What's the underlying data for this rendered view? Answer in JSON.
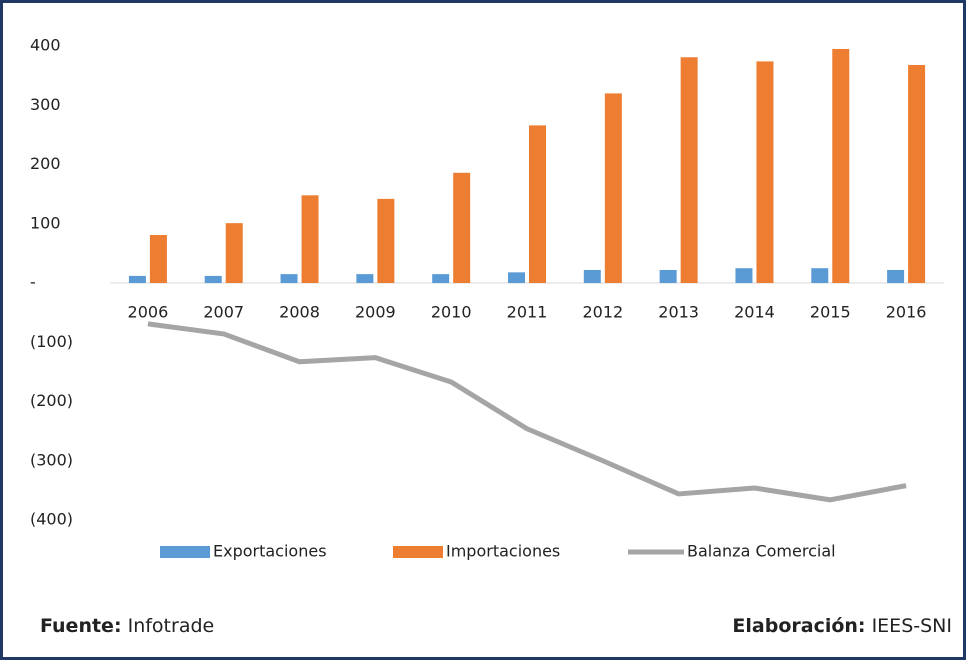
{
  "chart_data": {
    "type": "bar",
    "categories": [
      "2006",
      "2007",
      "2008",
      "2009",
      "2010",
      "2011",
      "2012",
      "2013",
      "2014",
      "2015",
      "2016"
    ],
    "series": [
      {
        "name": "Exportaciones",
        "type": "bar",
        "color": "#5b9bd5",
        "values": [
          12,
          12,
          15,
          15,
          15,
          18,
          22,
          22,
          25,
          25,
          22
        ]
      },
      {
        "name": "Importaciones",
        "type": "bar",
        "color": "#ed7d31",
        "values": [
          81,
          101,
          148,
          142,
          186,
          266,
          320,
          381,
          374,
          395,
          368
        ]
      },
      {
        "name": "Balanza Comercial",
        "type": "line",
        "color": "#a5a5a5",
        "values": [
          -69,
          -86,
          -133,
          -126,
          -167,
          -246,
          -300,
          -356,
          -346,
          -366,
          -342
        ]
      }
    ],
    "ylim": [
      -400,
      400
    ],
    "yticks": [
      {
        "value": -400,
        "label": "(400)"
      },
      {
        "value": -300,
        "label": "(300)"
      },
      {
        "value": -200,
        "label": "(200)"
      },
      {
        "value": -100,
        "label": "(100)"
      },
      {
        "value": 0,
        "label": "-"
      },
      100,
      200,
      300,
      400
    ],
    "grid": false
  },
  "footer": {
    "source": {
      "label": "Fuente:",
      "value": "Infotrade"
    },
    "author": {
      "label": "Elaboración:",
      "value": "IEES-SNI"
    }
  }
}
